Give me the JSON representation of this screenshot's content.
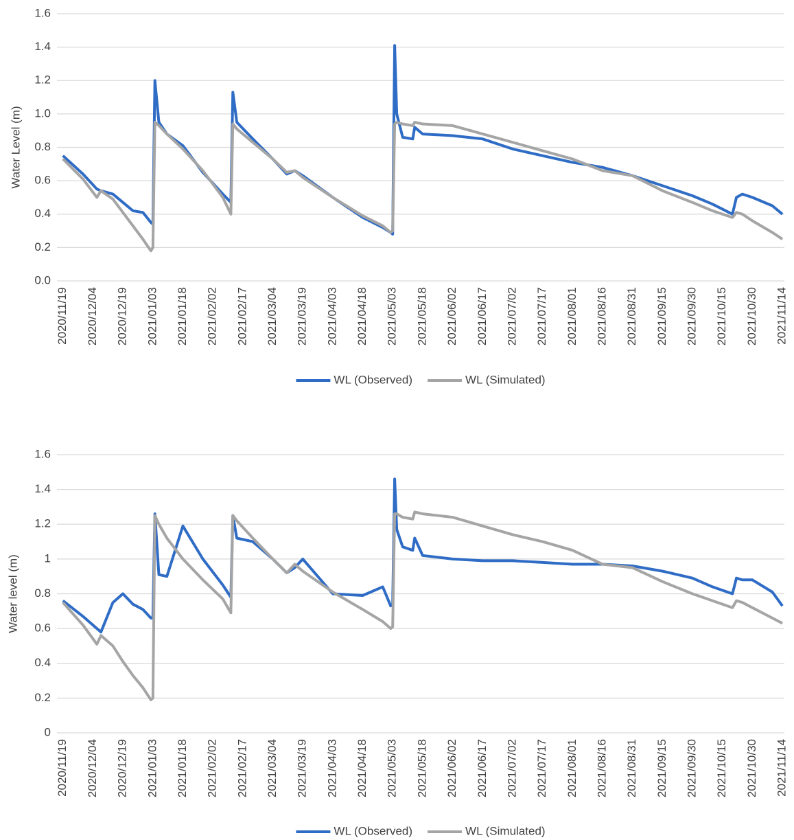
{
  "chart_data": [
    {
      "type": "line",
      "y_label": "Water Level (m)",
      "x": [
        "2020/11/19",
        "2020/11/29",
        "2020/12/06",
        "2020/12/08",
        "2020/12/14",
        "2020/12/19",
        "2020/12/24",
        "2020/12/29",
        "2021/01/02",
        "2021/01/03",
        "2021/01/04",
        "2021/01/06",
        "2021/01/10",
        "2021/01/18",
        "2021/01/28",
        "2021/02/07",
        "2021/02/11",
        "2021/02/12",
        "2021/02/14",
        "2021/02/22",
        "2021/03/04",
        "2021/03/11",
        "2021/03/15",
        "2021/03/19",
        "2021/04/03",
        "2021/04/18",
        "2021/04/28",
        "2021/05/02",
        "2021/05/03",
        "2021/05/04",
        "2021/05/05",
        "2021/05/08",
        "2021/05/13",
        "2021/05/14",
        "2021/05/18",
        "2021/06/02",
        "2021/06/17",
        "2021/07/02",
        "2021/07/17",
        "2021/08/01",
        "2021/08/16",
        "2021/08/31",
        "2021/09/15",
        "2021/09/30",
        "2021/10/10",
        "2021/10/20",
        "2021/10/22",
        "2021/10/25",
        "2021/10/30",
        "2021/11/09",
        "2021/11/14"
      ],
      "series": [
        {
          "name": "WL (Observed)",
          "color": "#2f6cc5",
          "values": [
            0.75,
            0.64,
            0.55,
            0.54,
            0.52,
            0.47,
            0.42,
            0.41,
            0.35,
            0.34,
            1.2,
            0.95,
            0.88,
            0.81,
            0.65,
            0.52,
            0.47,
            1.13,
            0.95,
            0.85,
            0.73,
            0.64,
            0.66,
            0.63,
            0.5,
            0.38,
            0.32,
            0.29,
            0.28,
            1.41,
            1.0,
            0.86,
            0.85,
            0.92,
            0.88,
            0.87,
            0.85,
            0.79,
            0.75,
            0.71,
            0.68,
            0.63,
            0.57,
            0.51,
            0.46,
            0.4,
            0.5,
            0.52,
            0.5,
            0.45,
            0.4
          ]
        },
        {
          "name": "WL (Simulated)",
          "color": "#a5a5a5",
          "values": [
            0.73,
            0.61,
            0.5,
            0.54,
            0.49,
            0.41,
            0.33,
            0.25,
            0.18,
            0.2,
            0.95,
            0.93,
            0.88,
            0.79,
            0.66,
            0.5,
            0.4,
            0.94,
            0.91,
            0.83,
            0.73,
            0.65,
            0.66,
            0.62,
            0.5,
            0.39,
            0.33,
            0.29,
            0.3,
            0.94,
            0.95,
            0.94,
            0.93,
            0.95,
            0.94,
            0.93,
            0.88,
            0.83,
            0.78,
            0.73,
            0.66,
            0.63,
            0.54,
            0.47,
            0.42,
            0.38,
            0.41,
            0.4,
            0.36,
            0.29,
            0.25
          ]
        }
      ],
      "xlim": [
        "2020/11/16",
        "2021/11/15"
      ],
      "xticks": [
        "2020/11/19",
        "2020/12/04",
        "2020/12/19",
        "2021/01/03",
        "2021/01/18",
        "2021/02/02",
        "2021/02/17",
        "2021/03/04",
        "2021/03/19",
        "2021/04/03",
        "2021/04/18",
        "2021/05/03",
        "2021/05/18",
        "2021/06/02",
        "2021/06/17",
        "2021/07/02",
        "2021/07/17",
        "2021/08/01",
        "2021/08/16",
        "2021/08/31",
        "2021/09/15",
        "2021/09/30",
        "2021/10/15",
        "2021/10/30",
        "2021/11/14"
      ],
      "ylim": [
        0,
        1.6
      ],
      "yticks": [
        {
          "value": 0,
          "label": "0.0"
        },
        0.2,
        0.4,
        0.6,
        0.8,
        {
          "value": 1,
          "label": "1.0"
        },
        1.2,
        1.4,
        1.6
      ],
      "grid": true,
      "legend": "bottom"
    },
    {
      "type": "line",
      "y_label": "Water level (m)",
      "x": [
        "2020/11/19",
        "2020/11/29",
        "2020/12/06",
        "2020/12/08",
        "2020/12/14",
        "2020/12/19",
        "2020/12/24",
        "2020/12/29",
        "2021/01/02",
        "2021/01/03",
        "2021/01/04",
        "2021/01/06",
        "2021/01/10",
        "2021/01/18",
        "2021/01/28",
        "2021/02/07",
        "2021/02/11",
        "2021/02/12",
        "2021/02/14",
        "2021/02/22",
        "2021/03/04",
        "2021/03/11",
        "2021/03/15",
        "2021/03/19",
        "2021/04/03",
        "2021/04/18",
        "2021/04/28",
        "2021/05/02",
        "2021/05/03",
        "2021/05/04",
        "2021/05/05",
        "2021/05/08",
        "2021/05/13",
        "2021/05/14",
        "2021/05/18",
        "2021/06/02",
        "2021/06/17",
        "2021/07/02",
        "2021/07/17",
        "2021/08/01",
        "2021/08/16",
        "2021/08/31",
        "2021/09/15",
        "2021/09/30",
        "2021/10/10",
        "2021/10/20",
        "2021/10/22",
        "2021/10/25",
        "2021/10/30",
        "2021/11/09",
        "2021/11/14"
      ],
      "series": [
        {
          "name": "WL (Observed)",
          "color": "#2f6cc5",
          "values": [
            0.76,
            0.67,
            0.6,
            0.58,
            0.75,
            0.8,
            0.74,
            0.71,
            0.66,
            0.66,
            1.26,
            0.91,
            0.9,
            1.19,
            1.0,
            0.85,
            0.78,
            1.25,
            1.12,
            1.1,
            1.0,
            0.92,
            0.95,
            1.0,
            0.8,
            0.79,
            0.84,
            0.73,
            0.74,
            1.46,
            1.17,
            1.07,
            1.05,
            1.12,
            1.02,
            1.0,
            0.99,
            0.99,
            0.98,
            0.97,
            0.97,
            0.96,
            0.93,
            0.89,
            0.84,
            0.8,
            0.89,
            0.88,
            0.88,
            0.81,
            0.73
          ]
        },
        {
          "name": "WL (Simulated)",
          "color": "#a5a5a5",
          "values": [
            0.75,
            0.62,
            0.51,
            0.56,
            0.5,
            0.41,
            0.33,
            0.26,
            0.19,
            0.2,
            1.25,
            1.2,
            1.12,
            1.0,
            0.88,
            0.77,
            0.69,
            1.25,
            1.22,
            1.12,
            1.0,
            0.92,
            0.97,
            0.93,
            0.81,
            0.71,
            0.64,
            0.6,
            0.61,
            1.26,
            1.26,
            1.24,
            1.23,
            1.27,
            1.26,
            1.24,
            1.19,
            1.14,
            1.1,
            1.05,
            0.97,
            0.95,
            0.87,
            0.8,
            0.76,
            0.72,
            0.76,
            0.75,
            0.72,
            0.66,
            0.63
          ]
        }
      ],
      "xlim": [
        "2020/11/16",
        "2021/11/15"
      ],
      "xticks": [
        "2020/11/19",
        "2020/12/04",
        "2020/12/19",
        "2021/01/03",
        "2021/01/18",
        "2021/02/02",
        "2021/02/17",
        "2021/03/04",
        "2021/03/19",
        "2021/04/03",
        "2021/04/18",
        "2021/05/03",
        "2021/05/18",
        "2021/06/02",
        "2021/06/17",
        "2021/07/02",
        "2021/07/17",
        "2021/08/01",
        "2021/08/16",
        "2021/08/31",
        "2021/09/15",
        "2021/09/30",
        "2021/10/15",
        "2021/10/30",
        "2021/11/14"
      ],
      "ylim": [
        0,
        1.6
      ],
      "yticks": [
        0,
        0.2,
        0.4,
        0.6,
        0.8,
        1,
        1.2,
        1.4,
        1.6
      ],
      "grid": true,
      "legend": "bottom"
    }
  ]
}
